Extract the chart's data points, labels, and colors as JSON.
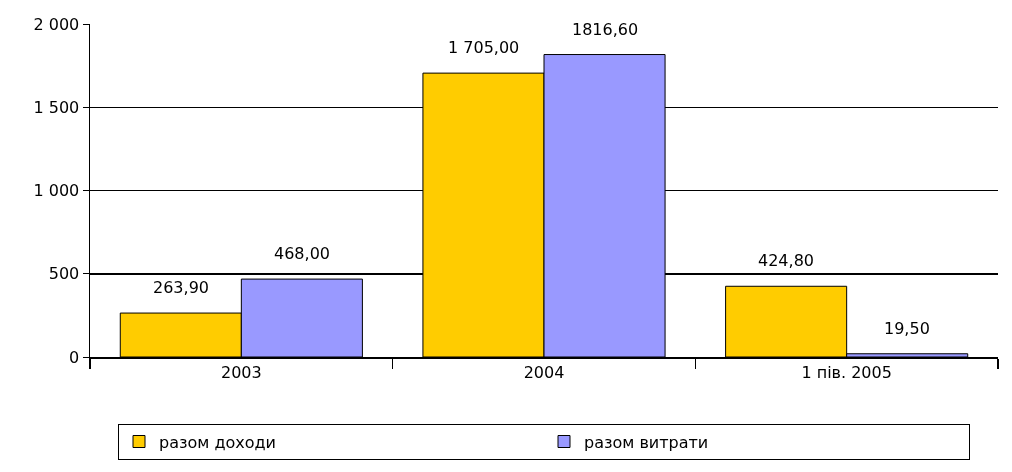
{
  "chart_data": {
    "type": "bar",
    "categories": [
      "2003",
      "2004",
      "1 пів. 2005"
    ],
    "series": [
      {
        "name": "разом доходи",
        "color": "#ffcc00",
        "values": [
          263.9,
          1705,
          424.8
        ],
        "value_labels": [
          "263,90",
          "1 705,00",
          "424,80"
        ]
      },
      {
        "name": "разом витрати",
        "color": "#9999ff",
        "values": [
          468,
          1816.6,
          19.5
        ],
        "value_labels": [
          "468,00",
          "1816,60",
          "19,50"
        ]
      }
    ],
    "ylim": [
      0,
      2000
    ],
    "yticks": [
      0,
      {
        "value": 500,
        "label": "500"
      },
      {
        "value": 1000,
        "label": "1 000"
      },
      {
        "value": 1500,
        "label": "1 500"
      },
      {
        "value": 2000,
        "label": "2 000"
      }
    ],
    "grid": "y",
    "legend": "bottom"
  }
}
